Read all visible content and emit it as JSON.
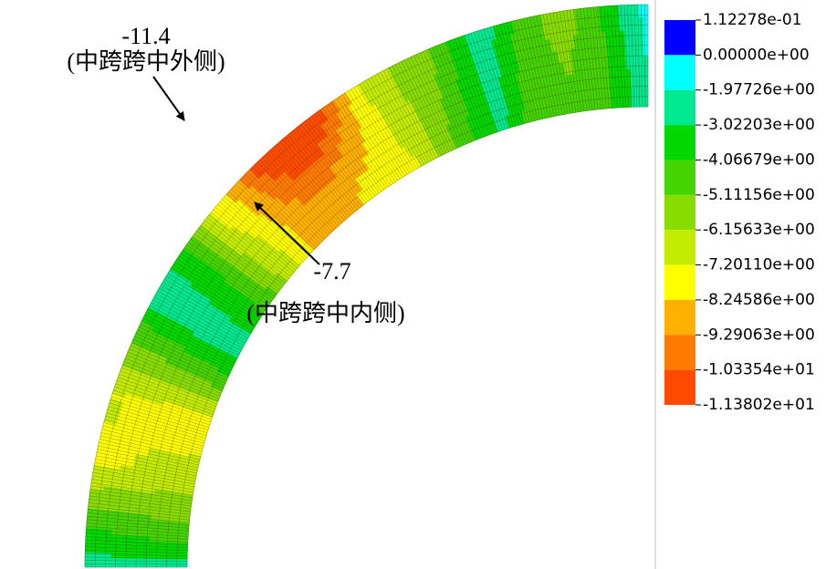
{
  "annotations": [
    {
      "value": "-11.4",
      "location": "(中跨跨中外侧)"
    },
    {
      "value": "-7.7",
      "location": "(中跨跨中内侧)"
    }
  ],
  "legend": {
    "labels": [
      "1.12278e-01",
      "0.00000e+00",
      "-1.97726e+00",
      "-3.02203e+00",
      "-4.06679e+00",
      "-5.11156e+00",
      "-6.15633e+00",
      "-7.20110e+00",
      "-8.24586e+00",
      "-9.29063e+00",
      "-1.03354e+01",
      "-1.13802e+01"
    ]
  }
}
